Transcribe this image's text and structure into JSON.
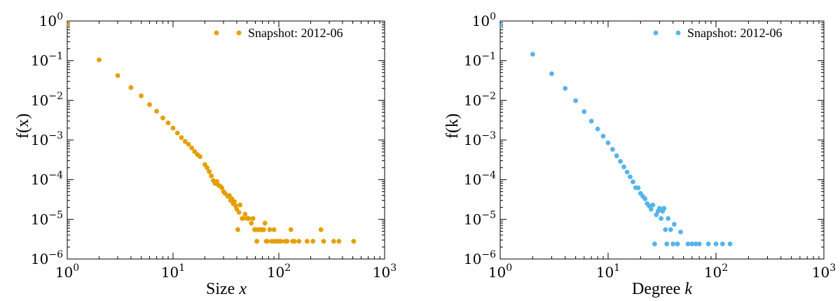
{
  "chart_data": [
    {
      "type": "scatter",
      "xscale": "log",
      "yscale": "log",
      "xlim": [
        1,
        1000
      ],
      "ylim": [
        1e-06,
        1
      ],
      "xlabel_prefix": "Size ",
      "xlabel_var": "x",
      "ylabel": "f(x)",
      "xticks": [
        "10^0",
        "10^1",
        "10^2",
        "10^3"
      ],
      "yticks": [
        "10^0",
        "10^-1",
        "10^-2",
        "10^-3",
        "10^-4",
        "10^-5",
        "10^-6"
      ],
      "legend": "top-right",
      "grid": false,
      "series": [
        {
          "name": "Snapshot: 2012-06",
          "color": "#E69F00",
          "points": [
            [
              1,
              0.8
            ],
            [
              2,
              0.105
            ],
            [
              3,
              0.042
            ],
            [
              4,
              0.021
            ],
            [
              5,
              0.013
            ],
            [
              6,
              0.0078
            ],
            [
              7,
              0.0053
            ],
            [
              8,
              0.0036
            ],
            [
              9,
              0.0027
            ],
            [
              10,
              0.002
            ],
            [
              11,
              0.0015
            ],
            [
              12,
              0.00115
            ],
            [
              13,
              0.00092
            ],
            [
              14,
              0.00078
            ],
            [
              15,
              0.00063
            ],
            [
              16,
              0.00051
            ],
            [
              17,
              0.00043
            ],
            [
              18,
              0.00038
            ],
            [
              20,
              0.00024
            ],
            [
              21,
              0.0002
            ],
            [
              22,
              0.00016
            ],
            [
              23,
              0.000125
            ],
            [
              24,
              9.5e-05
            ],
            [
              25,
              8e-05
            ],
            [
              26,
              9e-05
            ],
            [
              27,
              7.2e-05
            ],
            [
              28,
              6.8e-05
            ],
            [
              29,
              6.2e-05
            ],
            [
              30,
              5e-05
            ],
            [
              31,
              4.5e-05
            ],
            [
              33,
              3.8e-05
            ],
            [
              34,
              4e-05
            ],
            [
              35,
              3e-05
            ],
            [
              36,
              3.3e-05
            ],
            [
              37,
              2.5e-05
            ],
            [
              38,
              2.8e-05
            ],
            [
              39,
              2.2e-05
            ],
            [
              40,
              1.8e-05
            ],
            [
              41,
              5.5e-06
            ],
            [
              42,
              1.5e-05
            ],
            [
              43,
              2.3e-05
            ],
            [
              45,
              1.05e-05
            ],
            [
              46,
              1.05e-05
            ],
            [
              48,
              1.35e-05
            ],
            [
              50,
              1.05e-05
            ],
            [
              52,
              1.05e-05
            ],
            [
              55,
              8e-06
            ],
            [
              57,
              1.05e-05
            ],
            [
              59,
              5.5e-06
            ],
            [
              61,
              5.5e-06
            ],
            [
              62,
              2.8e-06
            ],
            [
              64,
              5.5e-06
            ],
            [
              66,
              5.5e-06
            ],
            [
              68,
              5.5e-06
            ],
            [
              70,
              5.5e-06
            ],
            [
              72,
              5.5e-06
            ],
            [
              74,
              8e-06
            ],
            [
              76,
              2.8e-06
            ],
            [
              78,
              2.8e-06
            ],
            [
              82,
              5.5e-06
            ],
            [
              86,
              2.8e-06
            ],
            [
              90,
              5.5e-06
            ],
            [
              92,
              2.8e-06
            ],
            [
              95,
              2.8e-06
            ],
            [
              100,
              2.8e-06
            ],
            [
              105,
              2.8e-06
            ],
            [
              115,
              2.8e-06
            ],
            [
              120,
              2.8e-06
            ],
            [
              130,
              5.5e-06
            ],
            [
              135,
              2.8e-06
            ],
            [
              140,
              2.8e-06
            ],
            [
              155,
              2.8e-06
            ],
            [
              185,
              2.8e-06
            ],
            [
              210,
              2.8e-06
            ],
            [
              250,
              5.5e-06
            ],
            [
              265,
              2.8e-06
            ],
            [
              330,
              2.8e-06
            ],
            [
              370,
              2.8e-06
            ],
            [
              510,
              2.8e-06
            ]
          ]
        }
      ]
    },
    {
      "type": "scatter",
      "xscale": "log",
      "yscale": "log",
      "xlim": [
        1,
        1000
      ],
      "ylim": [
        1e-06,
        1
      ],
      "xlabel_prefix": "Degree ",
      "xlabel_var": "k",
      "ylabel": "f(k)",
      "xticks": [
        "10^0",
        "10^1",
        "10^2",
        "10^3"
      ],
      "yticks": [
        "10^0",
        "10^-1",
        "10^-2",
        "10^-3",
        "10^-4",
        "10^-5",
        "10^-6"
      ],
      "legend": "top-right",
      "grid": false,
      "series": [
        {
          "name": "Snapshot: 2012-06",
          "color": "#56B4E9",
          "points": [
            [
              1,
              0.75
            ],
            [
              2,
              0.145
            ],
            [
              3,
              0.047
            ],
            [
              4,
              0.02
            ],
            [
              5,
              0.0098
            ],
            [
              6,
              0.0052
            ],
            [
              7,
              0.003
            ],
            [
              8,
              0.0019
            ],
            [
              9,
              0.00125
            ],
            [
              10,
              0.00085
            ],
            [
              11,
              0.00058
            ],
            [
              12,
              0.0004
            ],
            [
              13,
              0.00029
            ],
            [
              14,
              0.00021
            ],
            [
              15,
              0.000155
            ],
            [
              16,
              0.000118
            ],
            [
              17,
              8.8e-05
            ],
            [
              18,
              6.3e-05
            ],
            [
              19,
              6.2e-05
            ],
            [
              20,
              4.5e-05
            ],
            [
              21,
              3.8e-05
            ],
            [
              22,
              3.3e-05
            ],
            [
              23,
              2.5e-05
            ],
            [
              24,
              2.2e-05
            ],
            [
              25,
              1.8e-05
            ],
            [
              26,
              2.3e-05
            ],
            [
              27,
              2.4e-06
            ],
            [
              28,
              1.3e-05
            ],
            [
              29,
              1.6e-05
            ],
            [
              30,
              1.9e-05
            ],
            [
              31,
              1.05e-05
            ],
            [
              32,
              1.6e-05
            ],
            [
              33,
              1.9e-05
            ],
            [
              34,
              5.5e-06
            ],
            [
              35,
              2.4e-06
            ],
            [
              36,
              1.05e-05
            ],
            [
              38,
              5.5e-06
            ],
            [
              40,
              2.4e-06
            ],
            [
              41,
              7.5e-06
            ],
            [
              44,
              2.4e-06
            ],
            [
              47,
              4.8e-06
            ],
            [
              55,
              2.4e-06
            ],
            [
              60,
              2.4e-06
            ],
            [
              65,
              2.4e-06
            ],
            [
              70,
              2.4e-06
            ],
            [
              85,
              2.4e-06
            ],
            [
              100,
              2.4e-06
            ],
            [
              115,
              2.4e-06
            ],
            [
              135,
              2.4e-06
            ]
          ]
        }
      ]
    }
  ]
}
